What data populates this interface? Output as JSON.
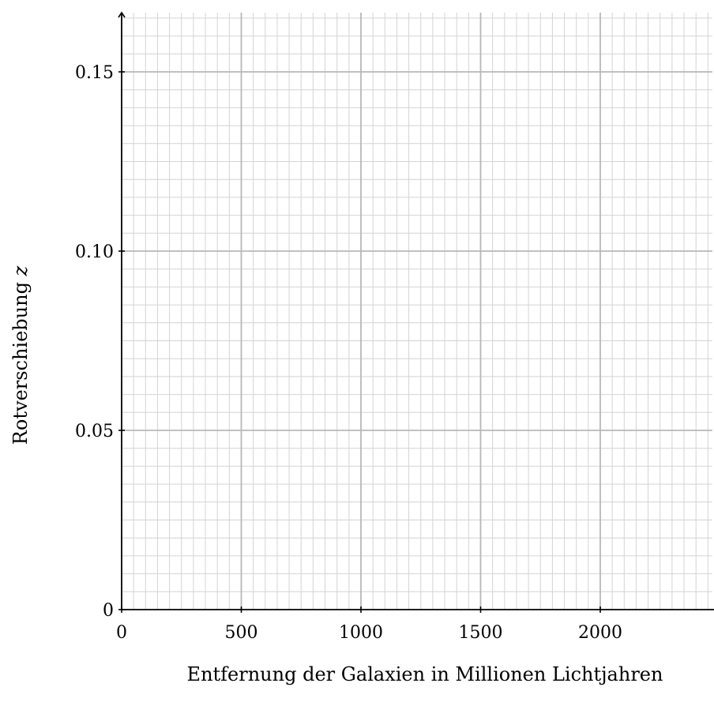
{
  "chart_data": {
    "type": "scatter",
    "title": "",
    "xlabel": "Entfernung der Galaxien in Millionen Lichtjahren",
    "ylabel_text": "Rotverschiebung ",
    "ylabel_var": "z",
    "xlim": [
      0,
      2450
    ],
    "ylim": [
      0,
      0.167
    ],
    "x_ticks": [
      0,
      500,
      1000,
      1500,
      2000
    ],
    "x_tick_labels": [
      "0",
      "500",
      "1000",
      "1500",
      "2000"
    ],
    "y_ticks": [
      0,
      0.05,
      0.1,
      0.15
    ],
    "y_tick_labels": [
      "0",
      "0.05",
      "0.10",
      "0.15"
    ],
    "grid": true,
    "x_minor_step": 50,
    "y_minor_step": 0.005,
    "series": [],
    "colors": {
      "axis": "#000000",
      "major_grid": "#b8b8b8",
      "minor_grid": "#d4d4d4"
    }
  }
}
